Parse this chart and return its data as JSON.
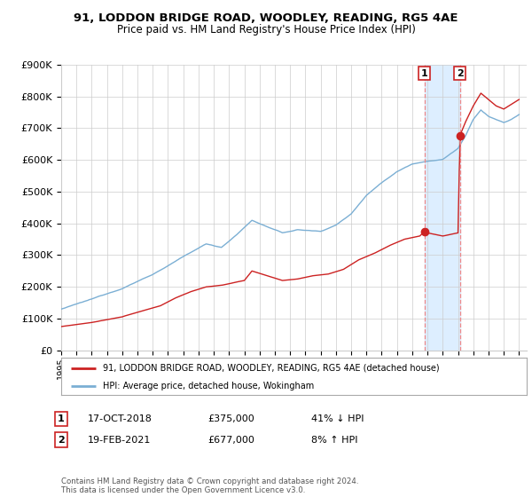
{
  "title": "91, LODDON BRIDGE ROAD, WOODLEY, READING, RG5 4AE",
  "subtitle": "Price paid vs. HM Land Registry's House Price Index (HPI)",
  "ylim": [
    0,
    900000
  ],
  "yticks": [
    0,
    100000,
    200000,
    300000,
    400000,
    500000,
    600000,
    700000,
    800000,
    900000
  ],
  "ytick_labels": [
    "£0",
    "£100K",
    "£200K",
    "£300K",
    "£400K",
    "£500K",
    "£600K",
    "£700K",
    "£800K",
    "£900K"
  ],
  "hpi_color": "#7bafd4",
  "price_color": "#cc2222",
  "point_color": "#cc2222",
  "dashed_line_color": "#ee8888",
  "highlight_bg": "#ddeeff",
  "sale1_date": 2018.8,
  "sale1_price": 375000,
  "sale2_date": 2021.13,
  "sale2_price": 677000,
  "legend1": "91, LODDON BRIDGE ROAD, WOODLEY, READING, RG5 4AE (detached house)",
  "legend2": "HPI: Average price, detached house, Wokingham",
  "table_row1_num": "1",
  "table_row1_date": "17-OCT-2018",
  "table_row1_price": "£375,000",
  "table_row1_hpi": "41% ↓ HPI",
  "table_row2_num": "2",
  "table_row2_date": "19-FEB-2021",
  "table_row2_price": "£677,000",
  "table_row2_hpi": "8% ↑ HPI",
  "footer": "Contains HM Land Registry data © Crown copyright and database right 2024.\nThis data is licensed under the Open Government Licence v3.0.",
  "background_color": "#ffffff",
  "grid_color": "#cccccc"
}
